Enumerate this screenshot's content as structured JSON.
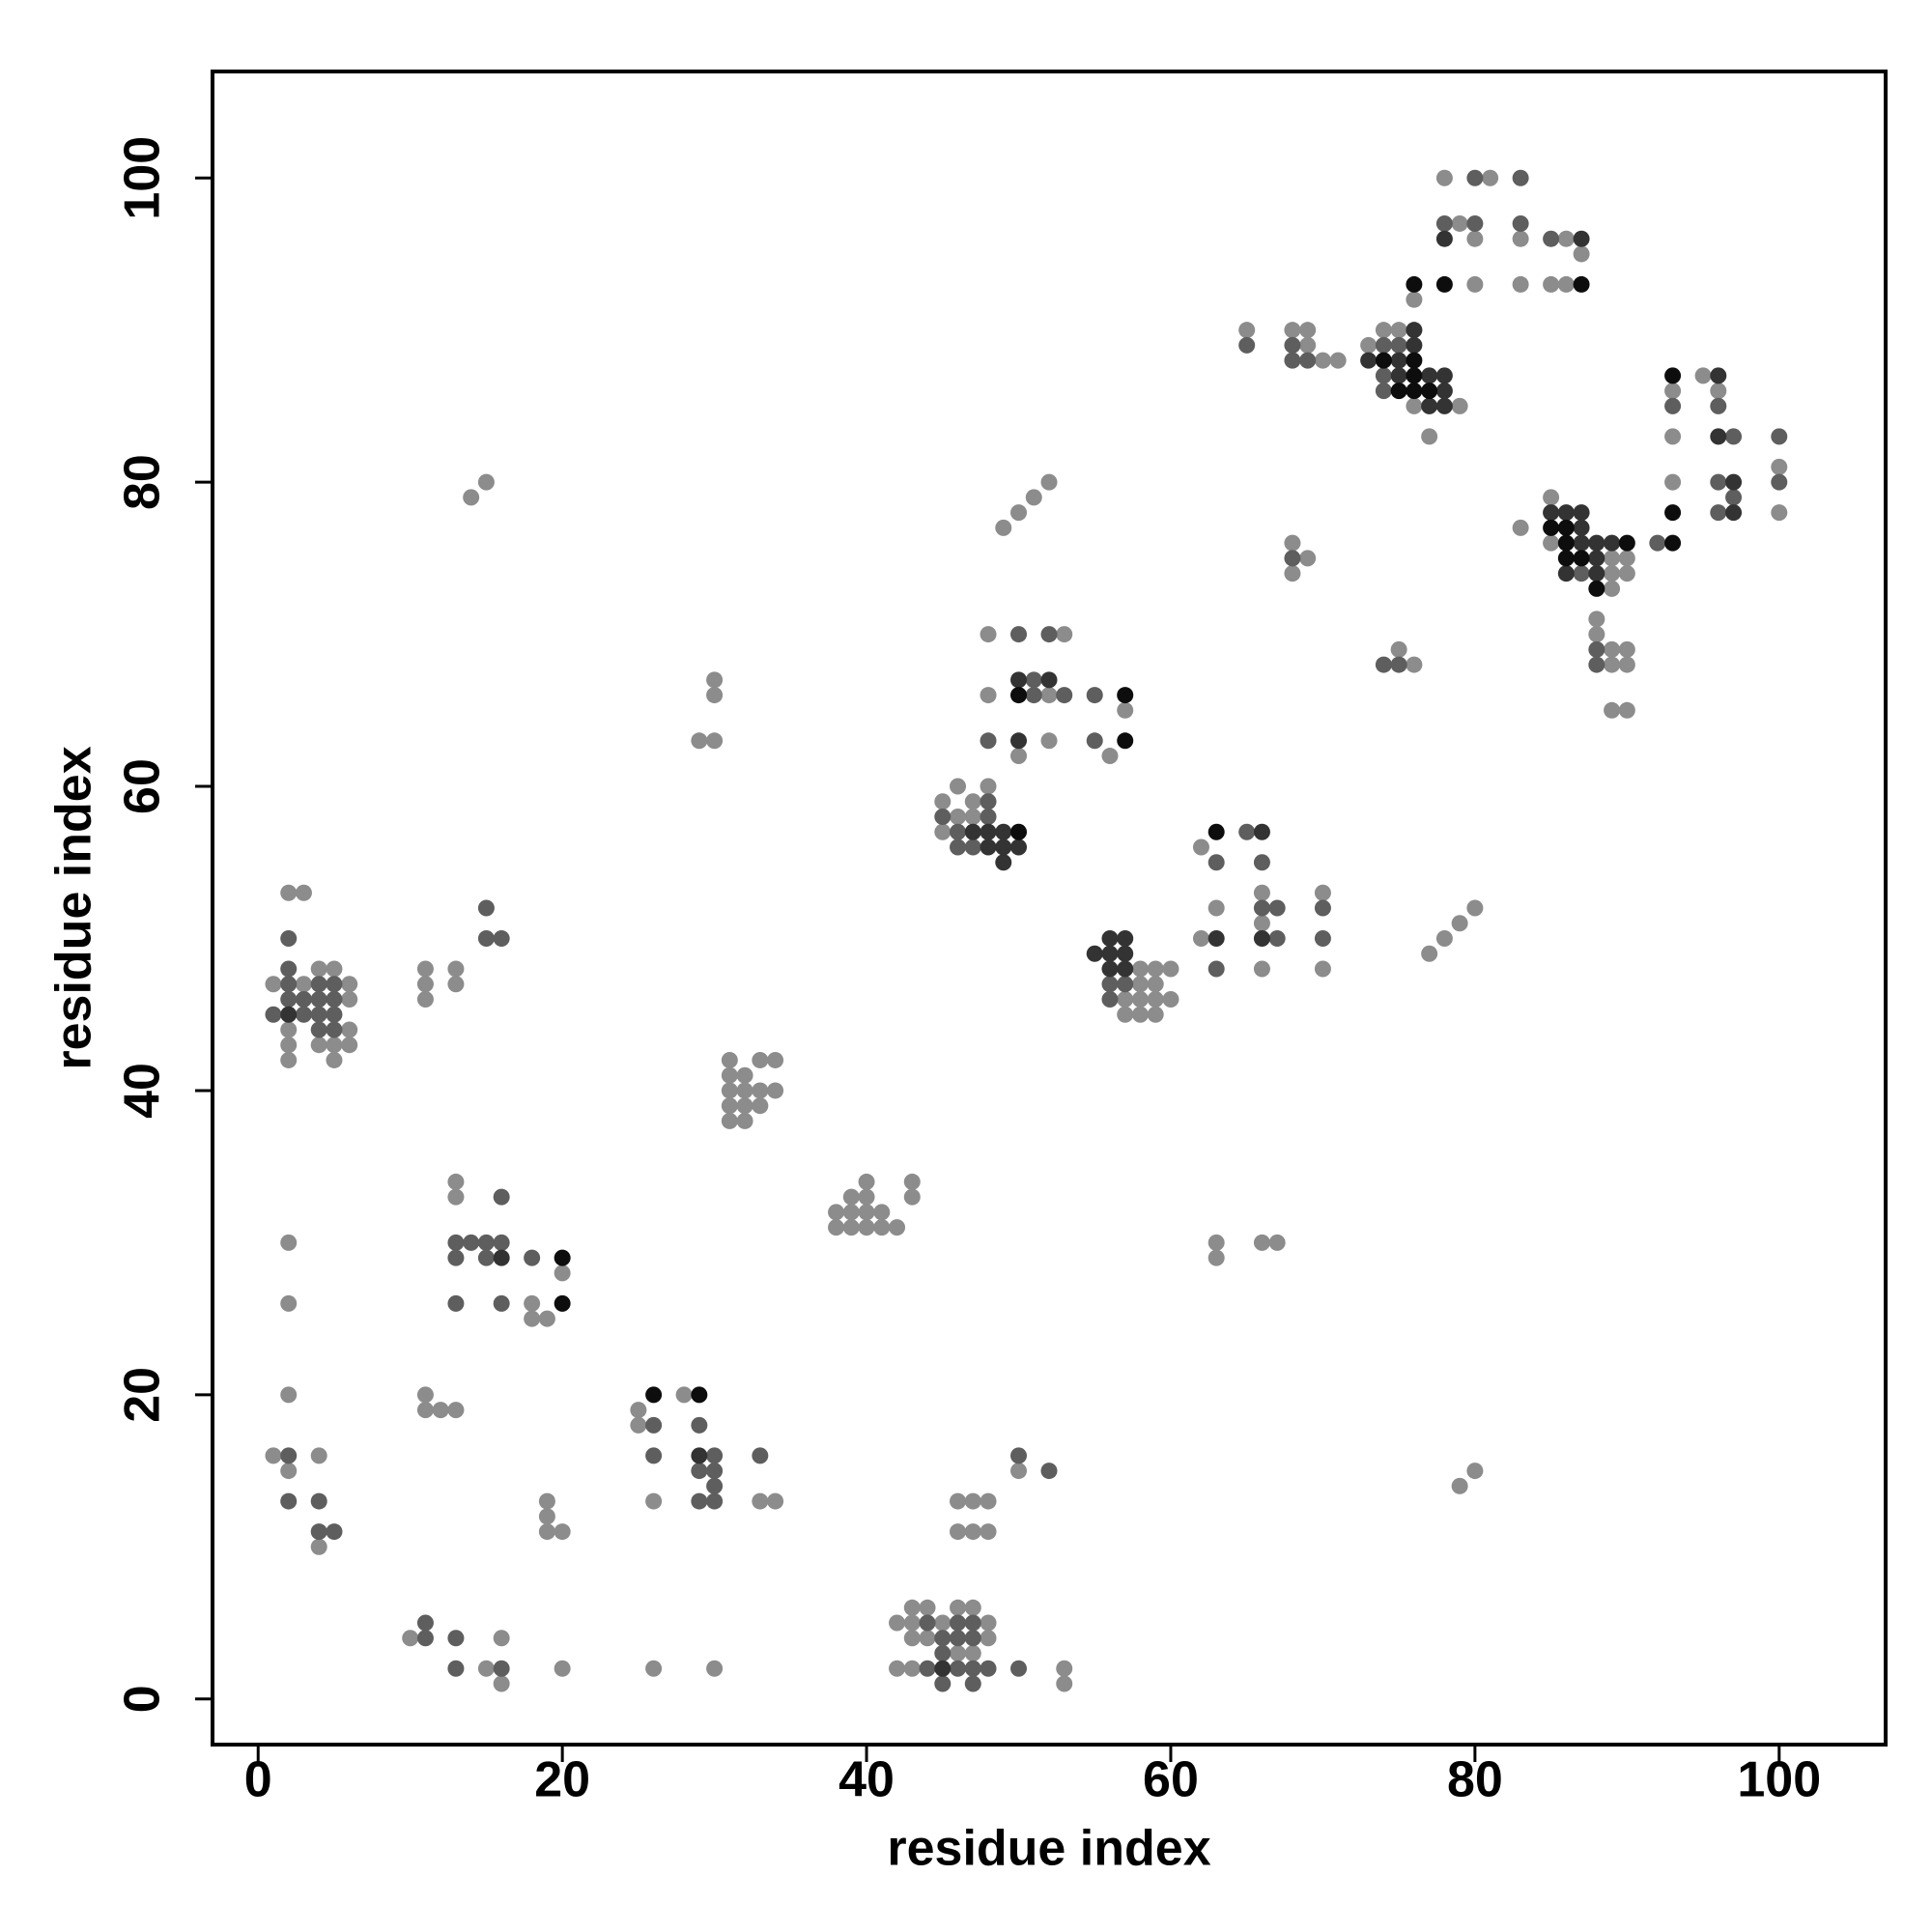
{
  "chart_data": {
    "type": "scatter",
    "x_label": "residue index",
    "y_label": "residue index",
    "xlim": [
      -3,
      107
    ],
    "ylim": [
      -3,
      107
    ],
    "xticks": [
      0,
      20,
      40,
      60,
      80,
      100
    ],
    "yticks": [
      0,
      20,
      40,
      60,
      80,
      100
    ],
    "series": [
      {
        "color": "#8c8c8c",
        "x": [
          1,
          2,
          4,
          4,
          2,
          2,
          2,
          10,
          15,
          16,
          16,
          20,
          11,
          11,
          12,
          13,
          13,
          13,
          18,
          18,
          19,
          20,
          19,
          19,
          19,
          20,
          25,
          25,
          28,
          26,
          33,
          34,
          26,
          30,
          2,
          3,
          4,
          5,
          1,
          3,
          6,
          6,
          2,
          6,
          2,
          4,
          5,
          6,
          2,
          5,
          11,
          11,
          11,
          13,
          13,
          14,
          15,
          30,
          30,
          29,
          30,
          31,
          33,
          34,
          31,
          32,
          31,
          32,
          33,
          34,
          31,
          32,
          33,
          31,
          32,
          38,
          39,
          40,
          40,
          39,
          40,
          41,
          43,
          43,
          38,
          39,
          40,
          41,
          42,
          42,
          43,
          44,
          46,
          47,
          43,
          45,
          48,
          43,
          44,
          48,
          46,
          47,
          42,
          43,
          53,
          53,
          46,
          47,
          48,
          46,
          47,
          48,
          50,
          45,
          46,
          48,
          46,
          47,
          45,
          47,
          48,
          53,
          52,
          48,
          52,
          50,
          57,
          56,
          49,
          50,
          51,
          52,
          58,
          59,
          60,
          58,
          59,
          57,
          58,
          59,
          60,
          57,
          58,
          59,
          62,
          63,
          66,
          66,
          62,
          66,
          70,
          70,
          63,
          63,
          66,
          67,
          65,
          68,
          69,
          69,
          70,
          71,
          68,
          69,
          68,
          74,
          75,
          73,
          76,
          79,
          77,
          76,
          75,
          76,
          77,
          78,
          79,
          80,
          79,
          80,
          78,
          81,
          79,
          80,
          83,
          86,
          87,
          80,
          83,
          85,
          86,
          83,
          85,
          85,
          89,
          90,
          89,
          90,
          89,
          88,
          88,
          89,
          90,
          89,
          90,
          89,
          90,
          95,
          93,
          96,
          93,
          93,
          100,
          100
        ],
        "values": [
          16,
          15,
          16,
          10,
          20,
          26,
          30,
          4,
          2,
          1,
          4,
          2,
          20,
          19,
          19,
          19,
          34,
          33,
          26,
          25,
          25,
          28,
          13,
          12,
          11,
          11,
          19,
          18,
          20,
          13,
          13,
          13,
          2,
          2,
          53,
          53,
          48,
          48,
          47,
          47,
          47,
          46,
          44,
          44,
          43,
          43,
          43,
          43,
          42,
          42,
          48,
          47,
          46,
          48,
          47,
          79,
          80,
          67,
          66,
          63,
          63,
          42,
          42,
          42,
          41,
          41,
          40,
          40,
          40,
          40,
          39,
          39,
          39,
          38,
          38,
          32,
          33,
          34,
          33,
          32,
          32,
          32,
          34,
          33,
          31,
          31,
          31,
          31,
          31,
          5,
          6,
          6,
          6,
          6,
          5,
          5,
          5,
          4,
          4,
          4,
          3,
          3,
          2,
          2,
          2,
          1,
          13,
          13,
          13,
          11,
          11,
          11,
          15,
          59,
          60,
          60,
          58,
          59,
          57,
          58,
          70,
          70,
          66,
          66,
          63,
          62,
          65,
          62,
          77,
          78,
          79,
          80,
          48,
          48,
          48,
          47,
          47,
          46,
          46,
          46,
          46,
          45,
          45,
          45,
          56,
          52,
          53,
          51,
          50,
          48,
          53,
          48,
          30,
          29,
          30,
          30,
          90,
          90,
          90,
          89,
          88,
          88,
          76,
          75,
          74,
          90,
          90,
          89,
          85,
          85,
          83,
          92,
          69,
          68,
          49,
          50,
          51,
          52,
          14,
          15,
          100,
          100,
          97,
          96,
          96,
          96,
          95,
          93,
          93,
          93,
          93,
          77,
          79,
          76,
          75,
          75,
          74,
          74,
          73,
          71,
          70,
          69,
          69,
          68,
          68,
          65,
          65,
          87,
          86,
          86,
          83,
          80,
          81,
          78
        ]
      },
      {
        "color": "#5e5e5e",
        "x": [
          2,
          2,
          4,
          4,
          5,
          11,
          11,
          13,
          13,
          16,
          13,
          13,
          14,
          15,
          15,
          16,
          16,
          13,
          16,
          18,
          26,
          29,
          26,
          30,
          29,
          30,
          30,
          29,
          30,
          33,
          2,
          2,
          2,
          4,
          5,
          2,
          3,
          4,
          5,
          1,
          3,
          4,
          5,
          4,
          5,
          15,
          15,
          16,
          44,
          46,
          47,
          45,
          46,
          47,
          45,
          44,
          46,
          47,
          48,
          50,
          45,
          47,
          50,
          52,
          45,
          48,
          46,
          46,
          47,
          48,
          50,
          52,
          51,
          51,
          53,
          48,
          55,
          55,
          56,
          57,
          56,
          65,
          63,
          66,
          66,
          67,
          67,
          63,
          70,
          70,
          65,
          68,
          68,
          69,
          68,
          74,
          75,
          74,
          74,
          74,
          75,
          80,
          83,
          78,
          80,
          83,
          85,
          87,
          88,
          88,
          92,
          93,
          96,
          97,
          100,
          96,
          100,
          97,
          96
        ],
        "values": [
          16,
          13,
          13,
          11,
          11,
          4,
          5,
          4,
          2,
          2,
          30,
          29,
          30,
          30,
          29,
          30,
          33,
          26,
          26,
          29,
          18,
          18,
          16,
          16,
          15,
          15,
          14,
          13,
          13,
          16,
          50,
          48,
          47,
          47,
          47,
          46,
          46,
          46,
          46,
          45,
          45,
          45,
          45,
          44,
          44,
          52,
          50,
          50,
          5,
          5,
          5,
          4,
          4,
          4,
          3,
          2,
          2,
          2,
          2,
          2,
          1,
          1,
          16,
          15,
          58,
          59,
          57,
          56,
          56,
          58,
          70,
          70,
          67,
          66,
          66,
          63,
          66,
          63,
          47,
          47,
          46,
          57,
          55,
          55,
          52,
          52,
          50,
          48,
          52,
          50,
          89,
          89,
          88,
          88,
          75,
          89,
          89,
          87,
          86,
          68,
          68,
          100,
          100,
          97,
          97,
          97,
          96,
          74,
          69,
          68,
          76,
          85,
          85,
          83,
          83,
          80,
          80,
          79,
          78
        ]
      },
      {
        "color": "#333333",
        "x": [
          16,
          29,
          2,
          45,
          47,
          48,
          49,
          48,
          49,
          50,
          49,
          50,
          52,
          50,
          55,
          56,
          57,
          56,
          57,
          56,
          57,
          66,
          63,
          66,
          76,
          76,
          73,
          75,
          75,
          77,
          78,
          78,
          77,
          78,
          78,
          87,
          85,
          86,
          87,
          87,
          87,
          88,
          89,
          88,
          86,
          88,
          96,
          96,
          97,
          97
        ],
        "values": [
          29,
          16,
          45,
          2,
          57,
          57,
          57,
          56,
          56,
          56,
          55,
          67,
          67,
          63,
          49,
          50,
          50,
          49,
          49,
          48,
          48,
          57,
          50,
          50,
          90,
          89,
          88,
          88,
          87,
          87,
          87,
          86,
          85,
          85,
          96,
          96,
          78,
          78,
          78,
          77,
          76,
          76,
          76,
          75,
          74,
          74,
          87,
          83,
          80,
          78
        ]
      },
      {
        "color": "#0d0d0d",
        "x": [
          20,
          20,
          26,
          29,
          50,
          50,
          57,
          57,
          63,
          74,
          76,
          76,
          75,
          76,
          77,
          76,
          78,
          87,
          85,
          86,
          86,
          90,
          86,
          87,
          88,
          93,
          93,
          93
        ],
        "values": [
          29,
          26,
          20,
          20,
          57,
          66,
          66,
          63,
          57,
          88,
          88,
          87,
          86,
          86,
          86,
          93,
          93,
          93,
          77,
          77,
          76,
          76,
          75,
          75,
          73,
          76,
          87,
          78
        ]
      }
    ]
  }
}
